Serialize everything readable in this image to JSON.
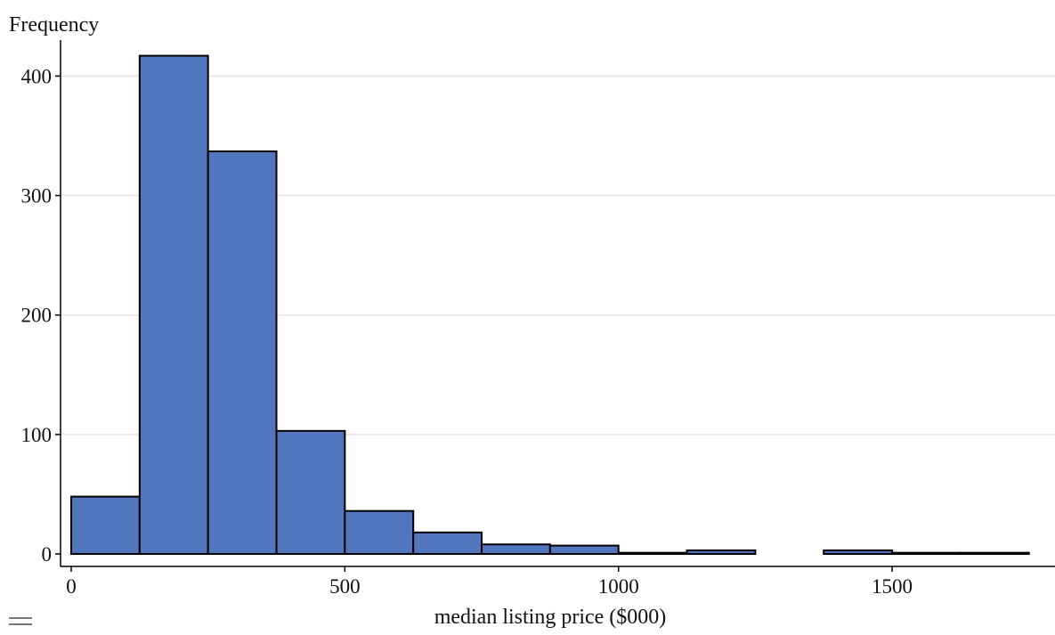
{
  "chart_data": {
    "type": "bar",
    "title": "",
    "xlabel": "median listing price ($000)",
    "ylabel": "Frequency",
    "xlim": [
      0,
      1800
    ],
    "ylim": [
      0,
      430
    ],
    "x_ticks": [
      0,
      500,
      1000,
      1500
    ],
    "y_ticks": [
      0,
      100,
      200,
      300,
      400
    ],
    "grid": "horizontal",
    "bin_width": 125,
    "bins": [
      {
        "start": 0,
        "end": 125,
        "count": 48
      },
      {
        "start": 125,
        "end": 250,
        "count": 417
      },
      {
        "start": 250,
        "end": 375,
        "count": 337
      },
      {
        "start": 375,
        "end": 500,
        "count": 103
      },
      {
        "start": 500,
        "end": 625,
        "count": 36
      },
      {
        "start": 625,
        "end": 750,
        "count": 18
      },
      {
        "start": 750,
        "end": 875,
        "count": 8
      },
      {
        "start": 875,
        "end": 1000,
        "count": 7
      },
      {
        "start": 1000,
        "end": 1125,
        "count": 1
      },
      {
        "start": 1125,
        "end": 1250,
        "count": 3
      },
      {
        "start": 1250,
        "end": 1375,
        "count": 0
      },
      {
        "start": 1375,
        "end": 1500,
        "count": 3
      },
      {
        "start": 1500,
        "end": 1625,
        "count": 1
      },
      {
        "start": 1625,
        "end": 1750,
        "count": 1
      }
    ],
    "colors": {
      "bar_fill": "#5176be",
      "bar_stroke": "#000000",
      "grid": "#e5e5e5",
      "axis": "#000000"
    }
  },
  "ui": {
    "menu_icon": "hamburger-icon"
  }
}
